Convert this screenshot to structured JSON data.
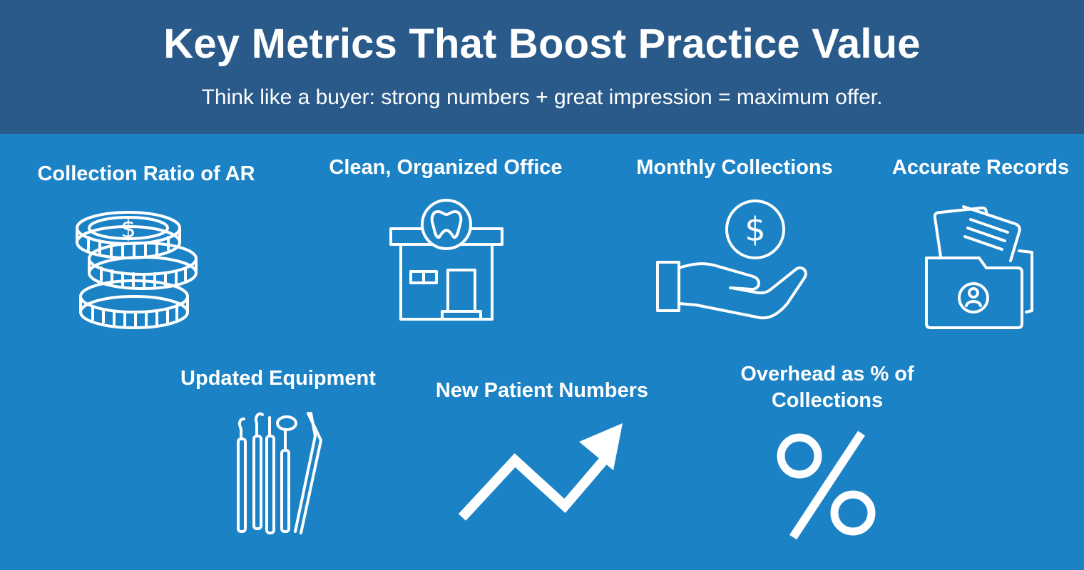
{
  "header": {
    "title": "Key Metrics That Boost Practice Value",
    "subtitle": "Think like a buyer: strong numbers + great impression = maximum offer."
  },
  "metrics": [
    {
      "label": "Collection Ratio of AR",
      "icon": "coin-stack-icon"
    },
    {
      "label": "Clean, Organized Office",
      "icon": "dental-office-icon"
    },
    {
      "label": "Monthly Collections",
      "icon": "hand-holding-dollar-icon"
    },
    {
      "label": "Accurate Records",
      "icon": "patient-folder-icon"
    },
    {
      "label": "Updated Equipment",
      "icon": "dental-tools-icon"
    },
    {
      "label": "New Patient Numbers",
      "icon": "trend-up-arrow-icon"
    },
    {
      "label": "Overhead as % of\nCollections",
      "icon": "percent-icon"
    }
  ],
  "colors": {
    "background": "#1b82c6",
    "header_background": "#295a8a",
    "foreground": "#ffffff"
  }
}
